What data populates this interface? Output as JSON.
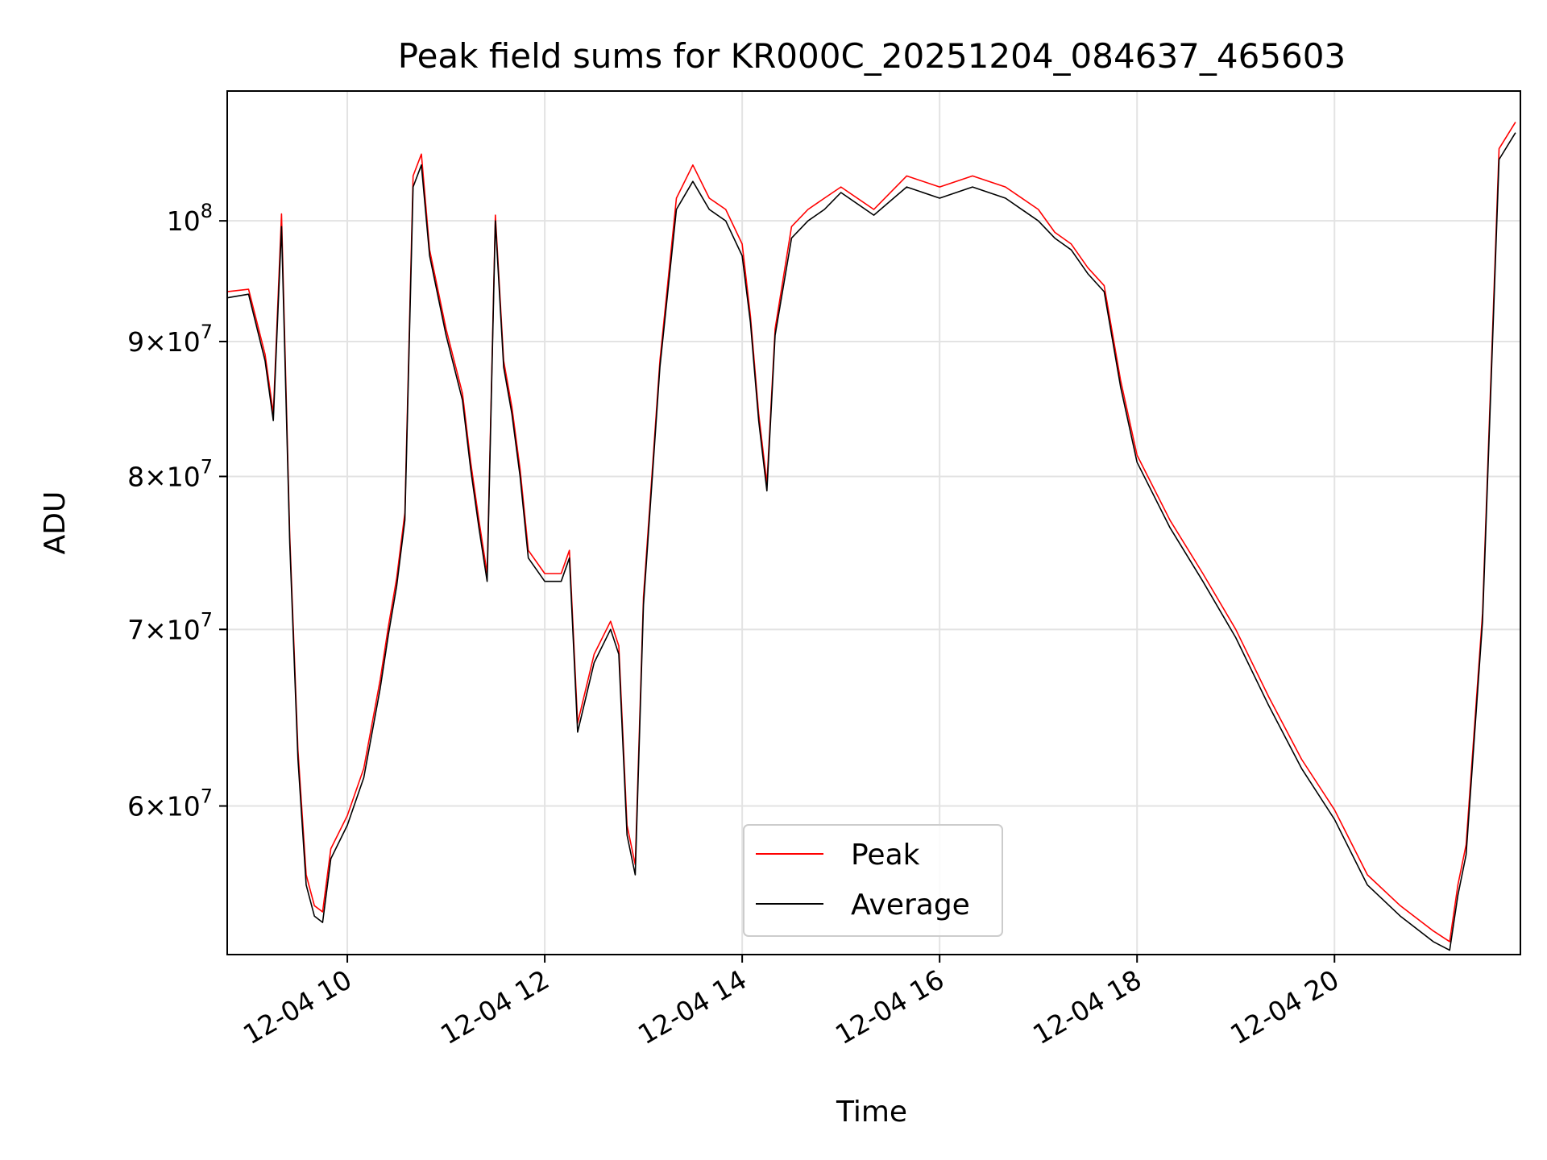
{
  "chart_data": {
    "type": "line",
    "title": "Peak field sums for KR000C_20251204_084637_465603",
    "xlabel": "Time",
    "ylabel": "ADU",
    "yscale": "log",
    "xlim": [
      "12-04 08:47",
      "12-04 21:53"
    ],
    "ylim": [
      52700000,
      112000000
    ],
    "grid": true,
    "legend_position": "lower-center",
    "x_ticks": [
      "12-04 10",
      "12-04 12",
      "12-04 14",
      "12-04 16",
      "12-04 18",
      "12-04 20"
    ],
    "y_ticks": [
      {
        "value": 60000000,
        "label": "6×10^7"
      },
      {
        "value": 70000000,
        "label": "7×10^7"
      },
      {
        "value": 80000000,
        "label": "8×10^7"
      },
      {
        "value": 90000000,
        "label": "9×10^7"
      },
      {
        "value": 100000000,
        "label": "10^8"
      }
    ],
    "x": [
      "08:47",
      "09:00",
      "09:10",
      "09:15",
      "09:20",
      "09:25",
      "09:30",
      "09:35",
      "09:40",
      "09:45",
      "09:50",
      "10:00",
      "10:10",
      "10:20",
      "10:25",
      "10:30",
      "10:35",
      "10:40",
      "10:45",
      "10:50",
      "11:00",
      "11:10",
      "11:15",
      "11:20",
      "11:25",
      "11:30",
      "11:35",
      "11:40",
      "11:45",
      "11:50",
      "12:00",
      "12:10",
      "12:15",
      "12:20",
      "12:30",
      "12:40",
      "12:45",
      "12:50",
      "12:55",
      "13:00",
      "13:10",
      "13:20",
      "13:30",
      "13:40",
      "13:50",
      "14:00",
      "14:05",
      "14:10",
      "14:15",
      "14:20",
      "14:30",
      "14:40",
      "14:50",
      "15:00",
      "15:20",
      "15:40",
      "16:00",
      "16:20",
      "16:40",
      "17:00",
      "17:10",
      "17:15",
      "17:20",
      "17:30",
      "17:40",
      "17:50",
      "18:00",
      "18:20",
      "18:40",
      "19:00",
      "19:20",
      "19:40",
      "20:00",
      "20:20",
      "20:40",
      "21:00",
      "21:10",
      "21:15",
      "21:20",
      "21:30",
      "21:40",
      "21:50"
    ],
    "series": [
      {
        "name": "Peak",
        "color": "#ff0000",
        "values": [
          94000000,
          94200000,
          89000000,
          84500000,
          100600000,
          76000000,
          63000000,
          56500000,
          55000000,
          54700000,
          57800000,
          59500000,
          62000000,
          67000000,
          70200000,
          73200000,
          77500000,
          104000000,
          106000000,
          97500000,
          91000000,
          86000000,
          81000000,
          77000000,
          73500000,
          100500000,
          88500000,
          85000000,
          80500000,
          75000000,
          73500000,
          73500000,
          75000000,
          64500000,
          68500000,
          70500000,
          69000000,
          59000000,
          57000000,
          72000000,
          88500000,
          102000000,
          105000000,
          102000000,
          101000000,
          98000000,
          92000000,
          84500000,
          79500000,
          91000000,
          99500000,
          101000000,
          102000000,
          103000000,
          101000000,
          104000000,
          103000000,
          104000000,
          103000000,
          101000000,
          99000000,
          98500000,
          98000000,
          96000000,
          94500000,
          87000000,
          81500000,
          77000000,
          73500000,
          70000000,
          66000000,
          62500000,
          59800000,
          56500000,
          55000000,
          53800000,
          53300000,
          56000000,
          58000000,
          71000000,
          106500000,
          109000000
        ]
      },
      {
        "name": "Average",
        "color": "#000000",
        "values": [
          93500000,
          93800000,
          88500000,
          84000000,
          99500000,
          75500000,
          62500000,
          56000000,
          54500000,
          54200000,
          57300000,
          59000000,
          61500000,
          66500000,
          69700000,
          72700000,
          77000000,
          103000000,
          105000000,
          97000000,
          90500000,
          85500000,
          80500000,
          76500000,
          73000000,
          100000000,
          88000000,
          84500000,
          80000000,
          74500000,
          73000000,
          73000000,
          74500000,
          64000000,
          68000000,
          70000000,
          68500000,
          58500000,
          56500000,
          71500000,
          88000000,
          101000000,
          103500000,
          101000000,
          100000000,
          97000000,
          91500000,
          84000000,
          79000000,
          90500000,
          98500000,
          100000000,
          101000000,
          102500000,
          100500000,
          103000000,
          102000000,
          103000000,
          102000000,
          100000000,
          98500000,
          98000000,
          97500000,
          95500000,
          94000000,
          86500000,
          81000000,
          76500000,
          73000000,
          69500000,
          65500000,
          62000000,
          59300000,
          56000000,
          54500000,
          53300000,
          52900000,
          55500000,
          57500000,
          70500000,
          105500000,
          108000000
        ]
      }
    ]
  }
}
